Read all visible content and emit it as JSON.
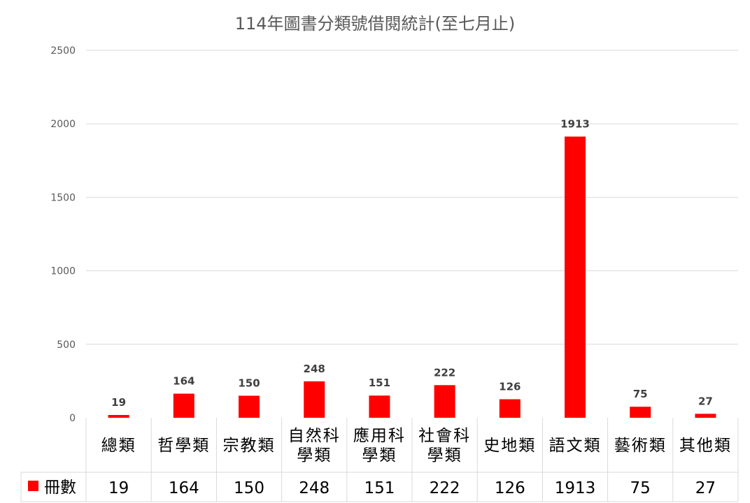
{
  "chart_data": {
    "type": "bar",
    "title": "114年圖書分類號借閱統計(至七月止)",
    "categories": [
      [
        "總類"
      ],
      [
        "哲學類"
      ],
      [
        "宗教類"
      ],
      [
        "自然科",
        "學類"
      ],
      [
        "應用科",
        "學類"
      ],
      [
        "社會科",
        "學類"
      ],
      [
        "史地類"
      ],
      [
        "語文類"
      ],
      [
        "藝術類"
      ],
      [
        "其他類"
      ]
    ],
    "series": [
      {
        "name": "冊數",
        "values": [
          19,
          164,
          150,
          248,
          151,
          222,
          126,
          1913,
          75,
          27
        ]
      }
    ],
    "ylim": [
      0,
      2500
    ],
    "yticks": [
      0,
      500,
      1000,
      1500,
      2000,
      2500
    ],
    "grid": true,
    "legend": "data-table",
    "colors": {
      "bar": "#ff0000",
      "grid": "#d9d9d9",
      "table": "#d9d9d9"
    }
  }
}
